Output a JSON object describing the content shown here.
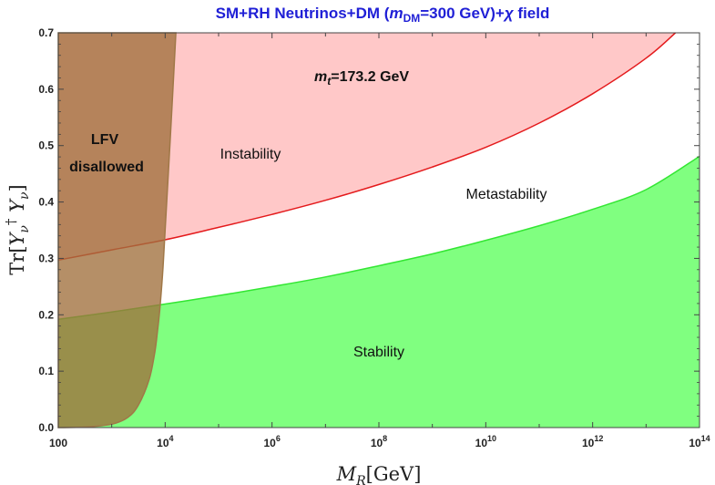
{
  "chart_data": {
    "type": "area",
    "title": {
      "prefix": "SM+RH Neutrinos+DM (",
      "m": "m",
      "m_sub": "DM",
      "value": "=300 GeV)+",
      "chi": "χ",
      "suffix": " field"
    },
    "xlabel": {
      "main": "M",
      "sub": "R",
      "unit": "[GeV]"
    },
    "ylabel": {
      "open": "Tr[",
      "Y": "Y",
      "sub": "ν",
      "dagger": "†",
      "close": "]"
    },
    "xscale": "log10",
    "xlim": [
      100,
      100000000000000.0
    ],
    "ylim": [
      0,
      0.7
    ],
    "x_ticks": [
      {
        "value": 100,
        "label": "100"
      },
      {
        "value": 10000,
        "base": "10",
        "exp": "4"
      },
      {
        "value": 1000000,
        "base": "10",
        "exp": "6"
      },
      {
        "value": 100000000,
        "base": "10",
        "exp": "8"
      },
      {
        "value": 10000000000,
        "base": "10",
        "exp": "10"
      },
      {
        "value": 1000000000000,
        "base": "10",
        "exp": "12"
      },
      {
        "value": 100000000000000,
        "base": "10",
        "exp": "14"
      }
    ],
    "y_ticks": [
      {
        "value": 0,
        "label": "0.0"
      },
      {
        "value": 0.1,
        "label": "0.1"
      },
      {
        "value": 0.2,
        "label": "0.2"
      },
      {
        "value": 0.3,
        "label": "0.3"
      },
      {
        "value": 0.4,
        "label": "0.4"
      },
      {
        "value": 0.5,
        "label": "0.5"
      },
      {
        "value": 0.6,
        "label": "0.6"
      },
      {
        "value": 0.7,
        "label": "0.7"
      }
    ],
    "series": [
      {
        "name": "Instability boundary",
        "color": "#e41a1c",
        "log10_x": [
          2,
          3,
          4,
          5,
          6,
          7,
          8,
          9,
          10,
          11,
          12,
          13,
          13.55
        ],
        "y": [
          0.297,
          0.315,
          0.333,
          0.355,
          0.378,
          0.403,
          0.431,
          0.462,
          0.497,
          0.54,
          0.592,
          0.655,
          0.7
        ]
      },
      {
        "name": "Metastability boundary",
        "color": "#33e633",
        "log10_x": [
          2,
          3,
          4,
          5,
          6,
          7,
          8,
          9,
          10,
          11,
          12,
          13,
          14
        ],
        "y": [
          0.192,
          0.205,
          0.219,
          0.234,
          0.25,
          0.267,
          0.287,
          0.308,
          0.332,
          0.358,
          0.387,
          0.422,
          0.481
        ]
      },
      {
        "name": "LFV bound",
        "color": "#a07848",
        "log10_x": [
          2,
          2.5,
          3,
          3.3,
          3.5,
          3.7,
          3.8,
          3.85,
          3.9,
          3.95,
          4.0,
          4.1,
          4.2
        ],
        "y": [
          0.0,
          0.001,
          0.006,
          0.018,
          0.04,
          0.085,
          0.13,
          0.165,
          0.21,
          0.27,
          0.35,
          0.52,
          0.7
        ]
      }
    ],
    "regions": [
      {
        "name": "Instability",
        "label": "Instability",
        "fill": "#ffc8c8"
      },
      {
        "name": "Metastability",
        "label": "Metastability",
        "fill": "#ffffff"
      },
      {
        "name": "Stability",
        "label": "Stability",
        "fill": "#80ff80"
      },
      {
        "name": "LFV disallowed",
        "label_line1": "LFV",
        "label_line2": "disallowed",
        "fill": "#a0703c",
        "opacity": 0.78
      }
    ],
    "annotation": {
      "m": "m",
      "sub": "t",
      "value": "=173.2 GeV"
    },
    "grid": false,
    "legend": "none"
  }
}
